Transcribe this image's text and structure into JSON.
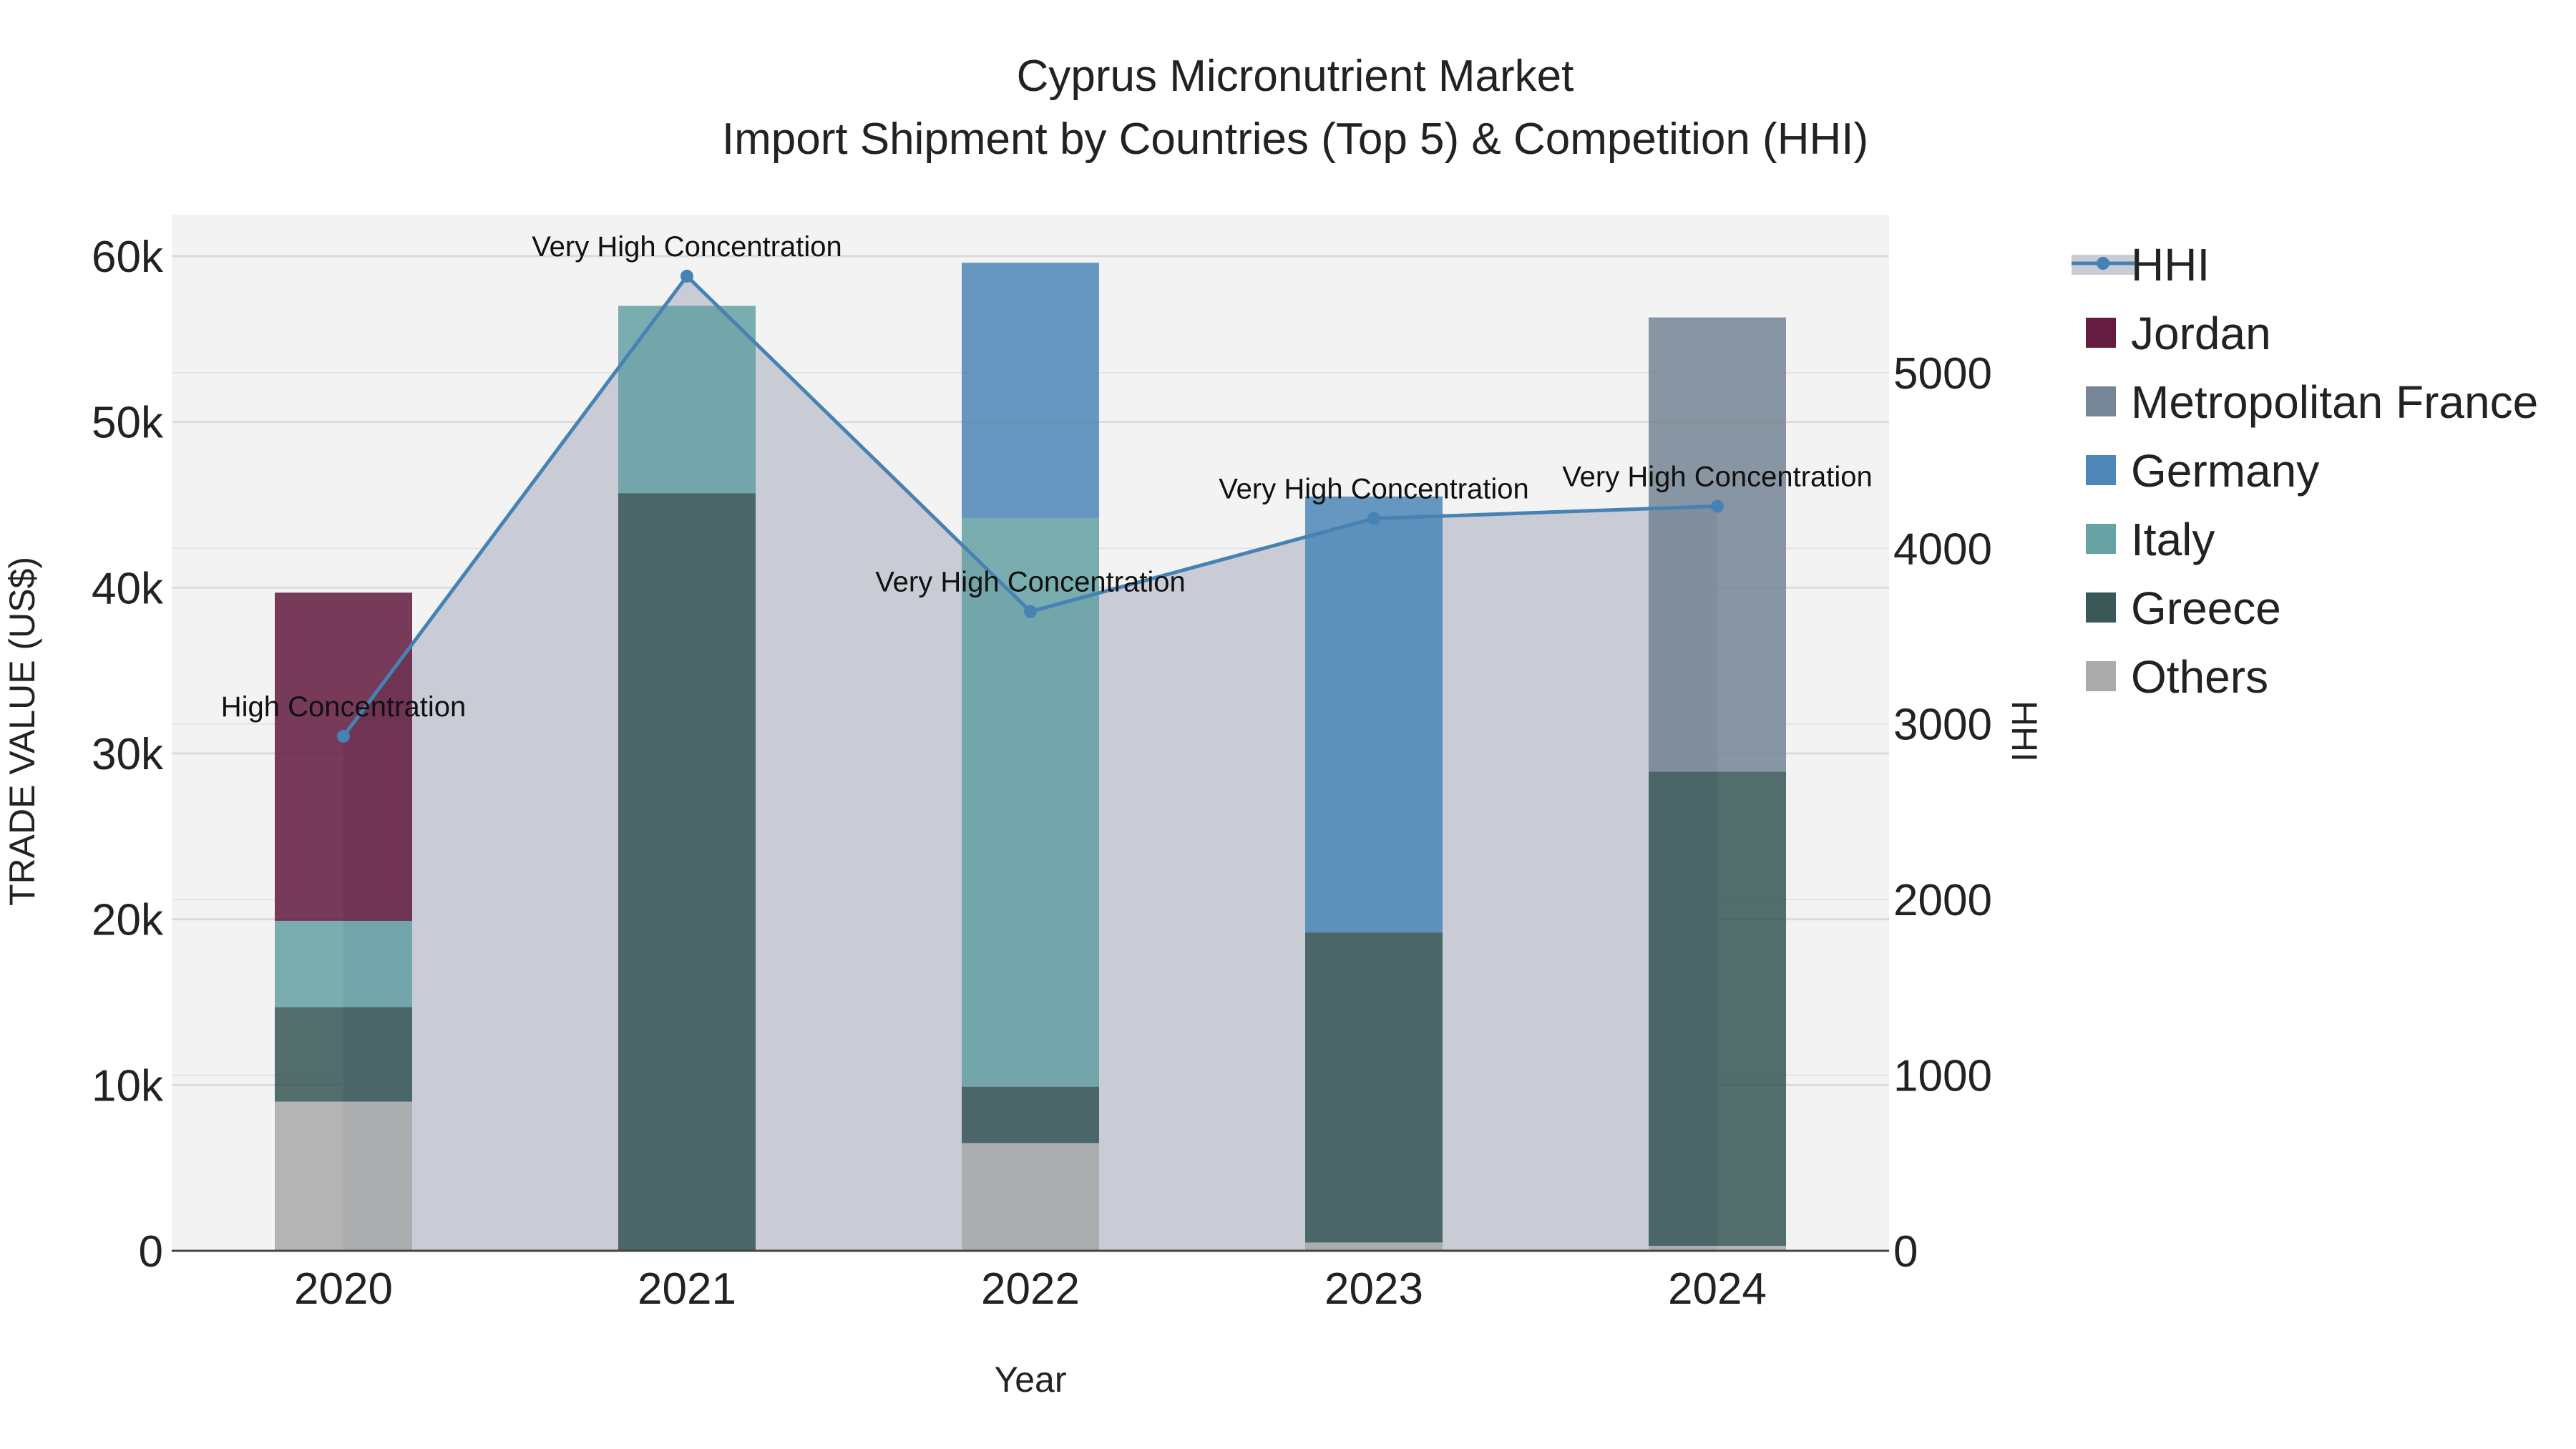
{
  "chart_data": {
    "type": "bar",
    "stacked": true,
    "title": "Cyprus Micronutrient Market",
    "subtitle": "Import Shipment by Countries (Top 5) & Competition (HHI)",
    "xlabel": "Year",
    "ylabel": "TRADE VALUE (US$)",
    "y2label": "HHI",
    "categories": [
      "2020",
      "2021",
      "2022",
      "2023",
      "2024"
    ],
    "ylim": [
      0,
      62500
    ],
    "y2lim": [
      0,
      5900
    ],
    "y_ticks": [
      0,
      10000,
      20000,
      30000,
      40000,
      50000,
      60000
    ],
    "y_tick_labels": [
      "0",
      "10k",
      "20k",
      "30k",
      "40k",
      "50k",
      "60k"
    ],
    "y2_ticks": [
      0,
      1000,
      2000,
      3000,
      4000,
      5000
    ],
    "y2_tick_labels": [
      "0",
      "1000",
      "2000",
      "3000",
      "4000",
      "5000"
    ],
    "grid": true,
    "legend_position": "right",
    "series": [
      {
        "name": "Others",
        "color": "#a6a6a6",
        "values": [
          9000,
          0,
          6500,
          500,
          300
        ]
      },
      {
        "name": "Greece",
        "color": "#2f4f4f",
        "values": [
          5700,
          45700,
          3400,
          18700,
          28600
        ]
      },
      {
        "name": "Italy",
        "color": "#5f9ea0",
        "values": [
          5200,
          11300,
          34300,
          0,
          0
        ]
      },
      {
        "name": "Germany",
        "color": "#4682b4",
        "values": [
          0,
          0,
          15400,
          26300,
          0
        ]
      },
      {
        "name": "Metropolitan France",
        "color": "#708090",
        "values": [
          0,
          0,
          0,
          0,
          27400
        ]
      },
      {
        "name": "Jordan",
        "color": "#5c1136",
        "values": [
          19800,
          0,
          0,
          0,
          0
        ]
      }
    ],
    "legend_order": [
      "HHI",
      "Jordan",
      "Metropolitan France",
      "Germany",
      "Italy",
      "Greece",
      "Others"
    ],
    "hhi": {
      "name": "HHI",
      "color": "#4682b4",
      "values": [
        2930,
        5550,
        3640,
        4170,
        4240
      ],
      "labels": [
        "High Concentration",
        "Very High Concentration",
        "Very High Concentration",
        "Very High Concentration",
        "Very High Concentration"
      ]
    }
  }
}
